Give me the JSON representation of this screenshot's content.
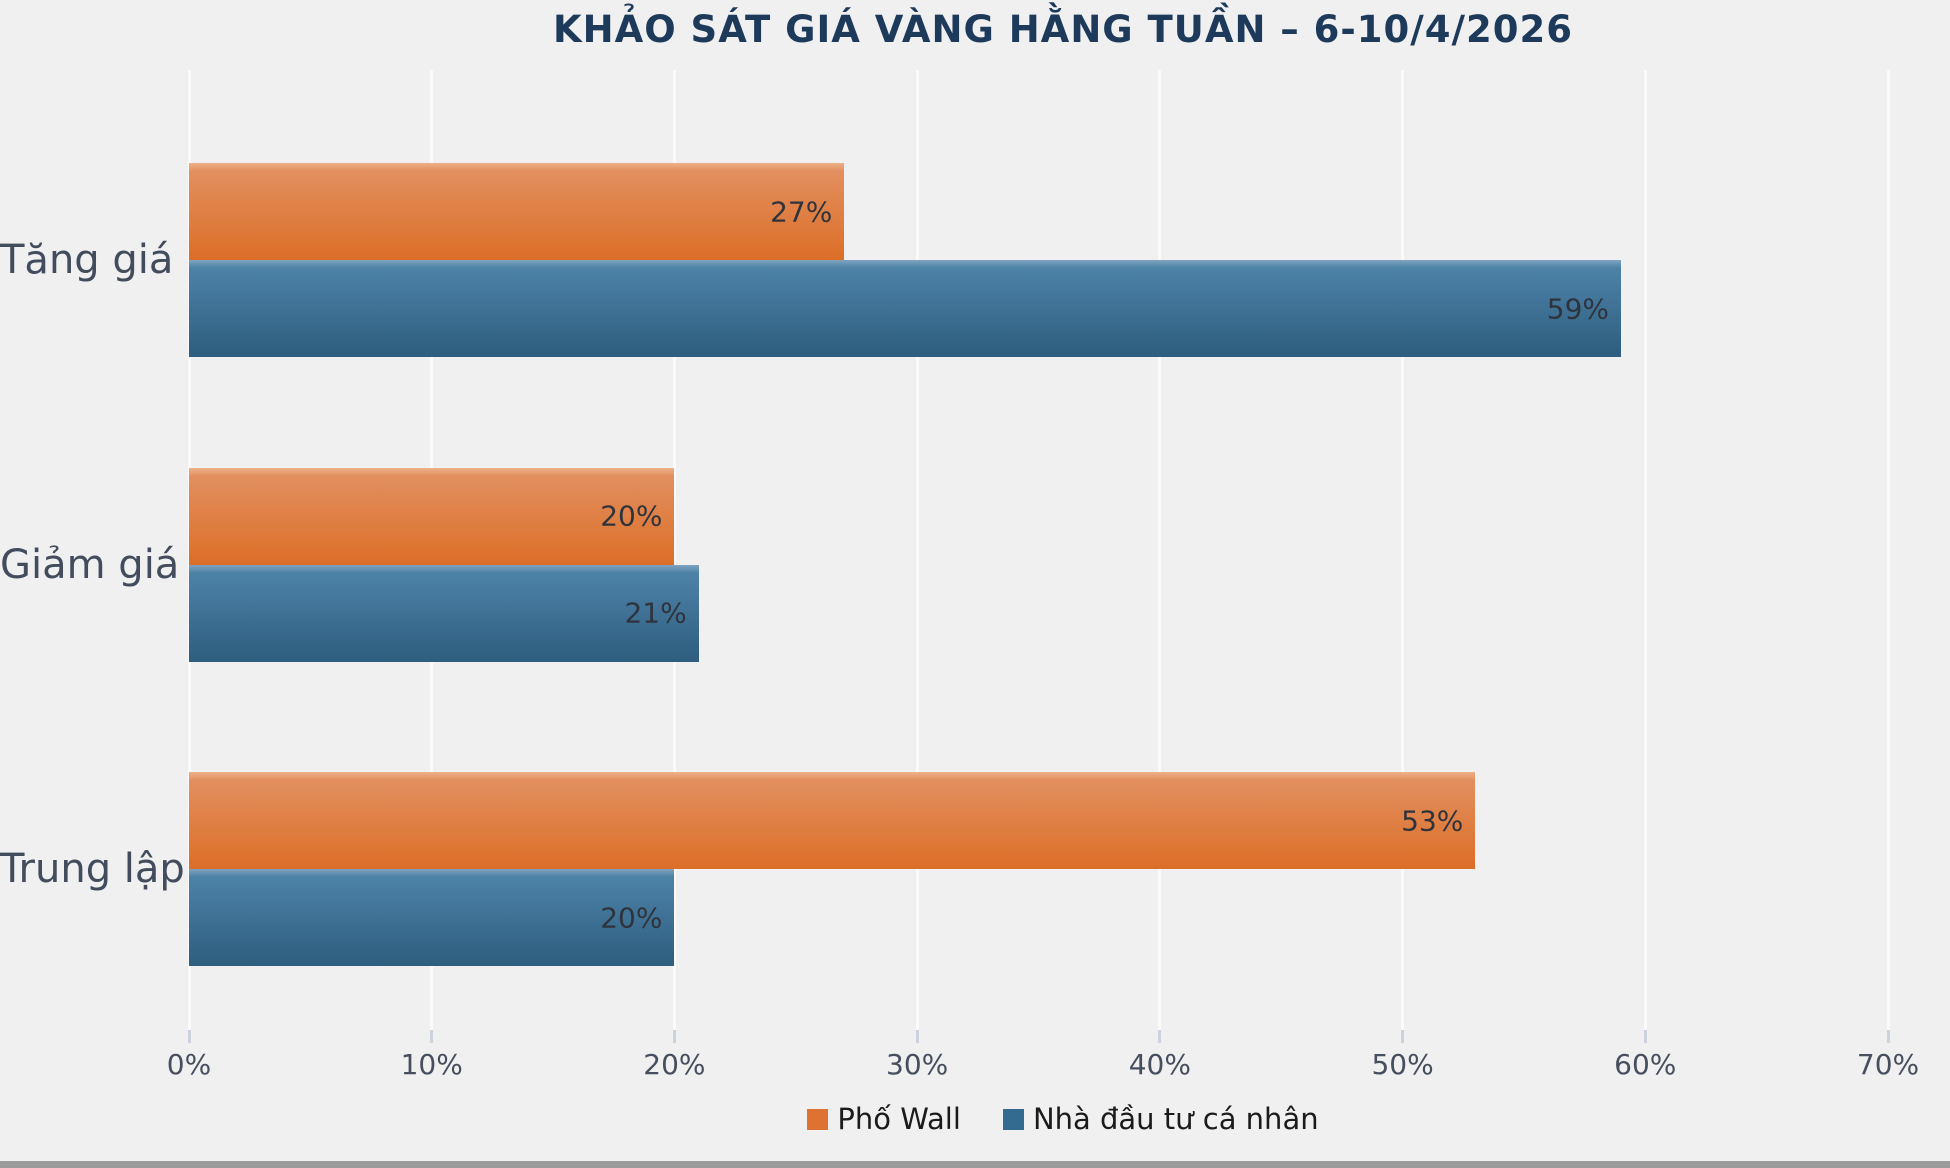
{
  "title": "KHẢO SÁT GIÁ VÀNG HẰNG TUẦN – 6-10/4/2026",
  "colors": {
    "background": "#f0f0f1",
    "title": "#1e3a5b",
    "gridline": "#fafafb",
    "axis_label": "#474e5e",
    "category_label": "#424c5c",
    "bar_value_label": "#2f343c"
  },
  "chart_data": {
    "type": "bar",
    "orientation": "horizontal",
    "title": "KHẢO SÁT GIÁ VÀNG HẰNG TUẦN – 6-10/4/2026",
    "categories": [
      "Tăng giá",
      "Giảm giá",
      "Trung lập"
    ],
    "series": [
      {
        "name": "Phố Wall",
        "values": [
          27,
          20,
          53
        ],
        "gradient": [
          "#eeb189",
          "#e28f5f",
          "#dc6e27"
        ],
        "legend_color": "#dd7233"
      },
      {
        "name": "Nhà đầu tư cá nhân",
        "values": [
          59,
          21,
          20
        ],
        "gradient": [
          "#7fa4c0",
          "#4d82a7",
          "#2d5d7f"
        ],
        "legend_color": "#336a90"
      }
    ],
    "value_suffix": "%",
    "xlim": [
      0,
      70
    ],
    "x_ticks": [
      "0%",
      "10%",
      "20%",
      "30%",
      "40%",
      "50%",
      "60%",
      "70%"
    ],
    "grid": true,
    "legend_position": "bottom",
    "xlabel": "",
    "ylabel": ""
  }
}
